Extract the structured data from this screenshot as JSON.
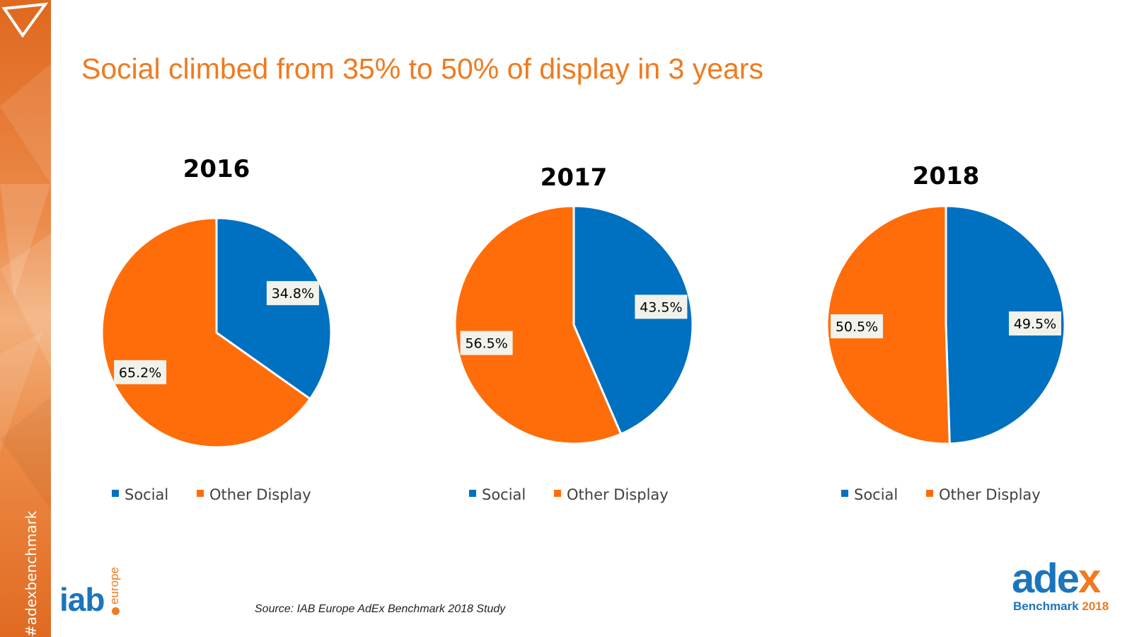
{
  "hashtag": "#adexbenchmark",
  "headline": "Social climbed from 35% to 50% of display in 3 years",
  "source": "Source: IAB Europe AdEx Benchmark 2018 Study",
  "colors": {
    "social": "#0070c0",
    "other_display": "#ff6d0a",
    "accent": "#f07a1f",
    "brand_blue": "#1b75bc"
  },
  "logos": {
    "iab": {
      "word": "iab",
      "sub": "europe"
    },
    "adex": {
      "word": "ade",
      "x": "x",
      "sub": "Benchmark",
      "year": "2018"
    }
  },
  "chart_data": [
    {
      "type": "pie",
      "title": "2016",
      "labels": [
        "Social",
        "Other Display"
      ],
      "values": [
        34.8,
        65.2
      ],
      "data_labels": [
        "34.8%",
        "65.2%"
      ],
      "colors": [
        "#0070c0",
        "#ff6d0a"
      ],
      "legend": "bottom"
    },
    {
      "type": "pie",
      "title": "2017",
      "labels": [
        "Social",
        "Other Display"
      ],
      "values": [
        43.5,
        56.5
      ],
      "data_labels": [
        "43.5%",
        "56.5%"
      ],
      "colors": [
        "#0070c0",
        "#ff6d0a"
      ],
      "legend": "bottom"
    },
    {
      "type": "pie",
      "title": "2018",
      "labels": [
        "Social",
        "Other Display"
      ],
      "values": [
        49.5,
        50.5
      ],
      "data_labels": [
        "49.5%",
        "50.5%"
      ],
      "colors": [
        "#0070c0",
        "#ff6d0a"
      ],
      "legend": "bottom"
    }
  ]
}
